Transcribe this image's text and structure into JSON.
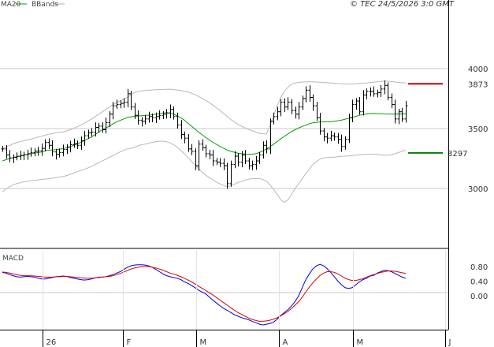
{
  "chart_data": [
    {
      "type": "ohlc",
      "legend": {
        "ma_label": "MA20",
        "bb_label": "BBands",
        "ma_color": "#00a000",
        "bb_color": "#b0b0b0"
      },
      "header_right": "© TEC 24/5/2026 3:0 GMT",
      "y_ticks": [
        "4000",
        "3500",
        "3000"
      ],
      "x_labels": [
        "26",
        "F",
        "M",
        "A",
        "M",
        "J"
      ],
      "ylim": [
        2500,
        4350
      ],
      "levels": [
        {
          "label": "3873",
          "value": 3873,
          "color": "#cc0000"
        },
        {
          "label": "3297",
          "value": 3297,
          "color": "#008000"
        }
      ],
      "close": [
        3330,
        3280,
        3255,
        3260,
        3268,
        3275,
        3282,
        3290,
        3300,
        3310,
        3315,
        3335,
        3385,
        3360,
        3305,
        3285,
        3300,
        3325,
        3345,
        3365,
        3375,
        3360,
        3400,
        3440,
        3465,
        3470,
        3510,
        3520,
        3490,
        3550,
        3620,
        3690,
        3700,
        3710,
        3720,
        3790,
        3680,
        3610,
        3570,
        3560,
        3580,
        3600,
        3590,
        3600,
        3610,
        3620,
        3630,
        3660,
        3600,
        3530,
        3450,
        3420,
        3330,
        3310,
        3190,
        3370,
        3340,
        3290,
        3280,
        3230,
        3220,
        3210,
        3190,
        3040,
        3200,
        3270,
        3220,
        3280,
        3230,
        3190,
        3200,
        3230,
        3280,
        3360,
        3330,
        3560,
        3600,
        3640,
        3720,
        3680,
        3720,
        3650,
        3620,
        3680,
        3750,
        3820,
        3760,
        3690,
        3590,
        3480,
        3430,
        3420,
        3440,
        3430,
        3410,
        3350,
        3410,
        3590,
        3700,
        3730,
        3640,
        3780,
        3810,
        3810,
        3790,
        3800,
        3830,
        3860,
        3760,
        3700,
        3580,
        3640,
        3580,
        3690
      ],
      "ma20": [
        3230,
        3240,
        3250,
        3258,
        3265,
        3272,
        3278,
        3285,
        3290,
        3295,
        3300,
        3305,
        3315,
        3320,
        3322,
        3324,
        3328,
        3332,
        3340,
        3350,
        3360,
        3372,
        3385,
        3400,
        3415,
        3430,
        3450,
        3470,
        3490,
        3505,
        3520,
        3540,
        3555,
        3568,
        3580,
        3592,
        3598,
        3602,
        3605,
        3607,
        3610,
        3612,
        3615,
        3620,
        3625,
        3630,
        3632,
        3630,
        3620,
        3605,
        3590,
        3570,
        3545,
        3520,
        3495,
        3470,
        3448,
        3425,
        3405,
        3385,
        3368,
        3350,
        3335,
        3320,
        3310,
        3302,
        3295,
        3290,
        3287,
        3286,
        3286,
        3290,
        3300,
        3315,
        3330,
        3348,
        3370,
        3393,
        3415,
        3435,
        3455,
        3475,
        3490,
        3505,
        3518,
        3528,
        3540,
        3548,
        3552,
        3555,
        3556,
        3557,
        3558,
        3560,
        3565,
        3570,
        3578,
        3585,
        3593,
        3602,
        3610,
        3617,
        3622,
        3625,
        3626,
        3625,
        3623,
        3622,
        3621,
        3621,
        3621,
        3621,
        3622,
        3623
      ],
      "bb_upper": [
        3330,
        3345,
        3360,
        3372,
        3382,
        3390,
        3398,
        3405,
        3412,
        3420,
        3428,
        3436,
        3445,
        3452,
        3458,
        3463,
        3468,
        3473,
        3480,
        3490,
        3502,
        3515,
        3530,
        3545,
        3562,
        3580,
        3600,
        3620,
        3640,
        3660,
        3680,
        3700,
        3715,
        3730,
        3745,
        3760,
        3780,
        3800,
        3810,
        3815,
        3818,
        3820,
        3822,
        3824,
        3825,
        3826,
        3827,
        3828,
        3825,
        3822,
        3818,
        3812,
        3805,
        3795,
        3782,
        3768,
        3752,
        3735,
        3715,
        3695,
        3672,
        3650,
        3625,
        3600,
        3575,
        3555,
        3535,
        3520,
        3505,
        3492,
        3482,
        3470,
        3460,
        3455,
        3455,
        3530,
        3610,
        3690,
        3760,
        3810,
        3845,
        3870,
        3880,
        3885,
        3888,
        3890,
        3890,
        3890,
        3888,
        3886,
        3884,
        3882,
        3880,
        3878,
        3876,
        3874,
        3872,
        3872,
        3873,
        3874,
        3876,
        3878,
        3880,
        3883,
        3886,
        3890,
        3893,
        3896,
        3895,
        3892,
        3888,
        3884,
        3882,
        3880
      ],
      "bb_lower": [
        2970,
        2995,
        3015,
        3030,
        3040,
        3048,
        3055,
        3060,
        3064,
        3068,
        3072,
        3076,
        3078,
        3082,
        3086,
        3090,
        3095,
        3100,
        3108,
        3118,
        3128,
        3140,
        3150,
        3160,
        3172,
        3185,
        3200,
        3215,
        3230,
        3245,
        3260,
        3275,
        3290,
        3305,
        3318,
        3330,
        3335,
        3345,
        3355,
        3365,
        3370,
        3378,
        3385,
        3390,
        3395,
        3395,
        3390,
        3380,
        3365,
        3345,
        3318,
        3290,
        3258,
        3225,
        3195,
        3165,
        3135,
        3110,
        3090,
        3070,
        3052,
        3038,
        3025,
        3015,
        3022,
        3035,
        3050,
        3058,
        3068,
        3078,
        3082,
        3083,
        3083,
        3075,
        3060,
        3030,
        2990,
        2950,
        2905,
        2885,
        2905,
        2950,
        3000,
        3040,
        3080,
        3125,
        3165,
        3200,
        3225,
        3245,
        3255,
        3258,
        3260,
        3262,
        3265,
        3268,
        3270,
        3272,
        3275,
        3278,
        3281,
        3283,
        3285,
        3287,
        3287,
        3284,
        3280,
        3277,
        3278,
        3282,
        3290,
        3300,
        3310,
        3320
      ]
    },
    {
      "type": "line",
      "title": "MACD",
      "y_ticks": [
        "0.80",
        "0.40",
        "0.00"
      ],
      "series": [
        {
          "color": "#0000dd",
          "values": [
            64,
            62,
            58,
            55,
            52,
            51,
            52,
            53,
            52,
            51,
            48,
            46,
            46,
            48,
            50,
            52,
            53,
            54,
            53,
            50,
            48,
            46,
            44,
            43,
            44,
            46,
            49,
            51,
            51,
            52,
            55,
            58,
            62,
            66,
            72,
            78,
            82,
            84,
            85,
            85,
            84,
            82,
            78,
            72,
            66,
            60,
            55,
            52,
            50,
            48,
            44,
            38,
            34,
            28,
            22,
            15,
            10,
            5,
            -4,
            -12,
            -20,
            -28,
            -35,
            -40,
            -46,
            -52,
            -56,
            -60,
            -63,
            -66,
            -70,
            -74,
            -78,
            -80,
            -78,
            -76,
            -72,
            -64,
            -54,
            -46,
            -38,
            -28,
            -16,
            0,
            22,
            44,
            60,
            74,
            82,
            86,
            82,
            74,
            64,
            52,
            40,
            30,
            22,
            20,
            22,
            30,
            38,
            44,
            48,
            54,
            56,
            62,
            66,
            70,
            69,
            66,
            61,
            56,
            51,
            48
          ]
        },
        {
          "color": "#dd0000",
          "values": [
            65,
            64,
            62,
            60,
            58,
            56,
            55,
            55,
            55,
            54,
            53,
            52,
            51,
            51,
            51,
            52,
            52,
            53,
            53,
            52,
            51,
            50,
            49,
            48,
            48,
            48,
            49,
            50,
            51,
            52,
            53,
            55,
            58,
            61,
            65,
            69,
            73,
            76,
            78,
            80,
            80,
            80,
            78,
            76,
            73,
            70,
            66,
            62,
            59,
            56,
            52,
            48,
            43,
            38,
            32,
            26,
            20,
            14,
            8,
            2,
            -5,
            -12,
            -19,
            -26,
            -33,
            -40,
            -46,
            -51,
            -56,
            -61,
            -65,
            -68,
            -70,
            -70,
            -69,
            -67,
            -64,
            -60,
            -55,
            -49,
            -43,
            -35,
            -26,
            -16,
            -4,
            10,
            24,
            36,
            46,
            56,
            62,
            66,
            66,
            64,
            60,
            54,
            48,
            44,
            42,
            42,
            44,
            47,
            51,
            55,
            58,
            61,
            64,
            66,
            68,
            68,
            67,
            65,
            63,
            61
          ]
        }
      ]
    }
  ]
}
